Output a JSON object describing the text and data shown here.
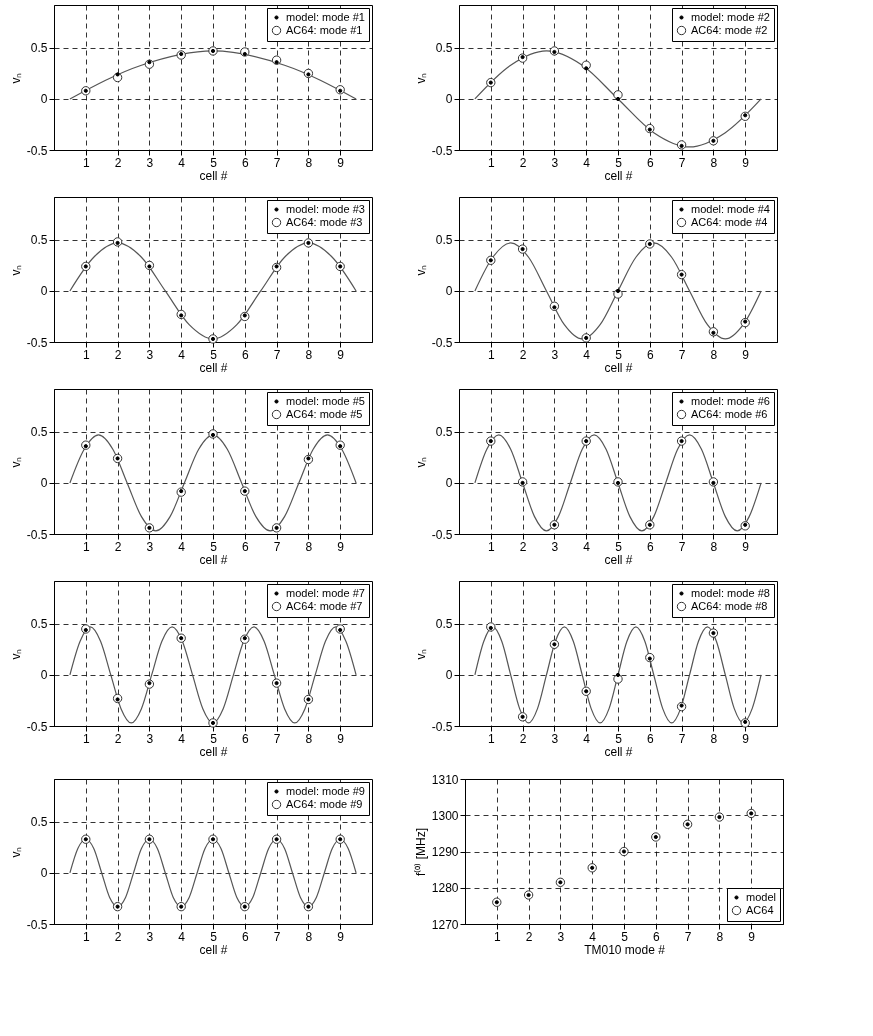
{
  "chart_data": [
    {
      "type": "scatter",
      "xlabel": "cell #",
      "ylabel": "vₙ",
      "x": [
        1,
        2,
        3,
        4,
        5,
        6,
        7,
        8,
        9
      ],
      "xlim": [
        0,
        10
      ],
      "xticks": [
        1,
        2,
        3,
        4,
        5,
        6,
        7,
        8,
        9
      ],
      "ylim": [
        -0.5,
        0.92
      ],
      "yticks": [
        -0.5,
        0,
        0.5
      ],
      "grid": true,
      "legend": "top right",
      "series": [
        {
          "name": "model: mode #1",
          "color": "#000000",
          "marker": "circle",
          "values": [
            0.08,
            0.24,
            0.36,
            0.44,
            0.47,
            0.44,
            0.36,
            0.24,
            0.08
          ]
        },
        {
          "type": "line",
          "color": "#555555",
          "marker": "none",
          "x": [
            0.5,
            2.75,
            5,
            7.25,
            9.5
          ],
          "values": [
            0,
            0.33,
            0.47,
            0.33,
            0
          ]
        },
        {
          "name": "AC64: mode #1",
          "color": "#333333",
          "marker": "circle",
          "values": [
            0.08,
            0.21,
            0.34,
            0.43,
            0.47,
            0.46,
            0.38,
            0.25,
            0.09
          ]
        }
      ]
    },
    {
      "type": "scatter",
      "xlabel": "cell #",
      "ylabel": "vₙ",
      "x": [
        1,
        2,
        3,
        4,
        5,
        6,
        7,
        8,
        9
      ],
      "xlim": [
        0,
        10
      ],
      "xticks": [
        1,
        2,
        3,
        4,
        5,
        6,
        7,
        8,
        9
      ],
      "ylim": [
        -0.5,
        0.92
      ],
      "yticks": [
        -0.5,
        0,
        0.5
      ],
      "grid": true,
      "legend": "top right",
      "series": [
        {
          "name": "model: mode #2",
          "color": "#000000",
          "marker": "circle",
          "values": [
            0.16,
            0.41,
            0.46,
            0.3,
            0,
            -0.3,
            -0.46,
            -0.41,
            -0.16
          ]
        },
        {
          "type": "line",
          "color": "#555555",
          "marker": "none",
          "x": [
            0.5,
            1.625,
            2.75,
            3.875,
            5,
            6.125,
            7.25,
            8.375,
            9.5
          ],
          "values": [
            0,
            0.33,
            0.47,
            0.33,
            0,
            -0.33,
            -0.47,
            -0.33,
            0
          ]
        },
        {
          "name": "AC64: mode #2",
          "color": "#333333",
          "marker": "circle",
          "values": [
            0.16,
            0.4,
            0.47,
            0.33,
            0.04,
            -0.29,
            -0.45,
            -0.41,
            -0.17
          ]
        }
      ]
    },
    {
      "type": "scatter",
      "xlabel": "cell #",
      "ylabel": "vₙ",
      "x": [
        1,
        2,
        3,
        4,
        5,
        6,
        7,
        8,
        9
      ],
      "xlim": [
        0,
        10
      ],
      "xticks": [
        1,
        2,
        3,
        4,
        5,
        6,
        7,
        8,
        9
      ],
      "ylim": [
        -0.5,
        0.92
      ],
      "yticks": [
        -0.5,
        0,
        0.5
      ],
      "grid": true,
      "legend": "top right",
      "series": [
        {
          "name": "model: mode #3",
          "color": "#000000",
          "marker": "circle",
          "values": [
            0.24,
            0.47,
            0.24,
            -0.24,
            -0.47,
            -0.24,
            0.24,
            0.47,
            0.24
          ]
        },
        {
          "type": "line",
          "color": "#555555",
          "marker": "none",
          "x": [
            0.5,
            1.25,
            2,
            2.75,
            3.5,
            4.25,
            5,
            5.75,
            6.5,
            7.25,
            8,
            8.75,
            9.5
          ],
          "values": [
            0,
            0.33,
            0.47,
            0.33,
            0,
            -0.33,
            -0.47,
            -0.33,
            0,
            0.33,
            0.47,
            0.33,
            0
          ]
        },
        {
          "name": "AC64: mode #3",
          "color": "#333333",
          "marker": "circle",
          "values": [
            0.24,
            0.48,
            0.25,
            -0.23,
            -0.47,
            -0.25,
            0.23,
            0.47,
            0.24
          ]
        }
      ]
    },
    {
      "type": "scatter",
      "xlabel": "cell #",
      "ylabel": "vₙ",
      "x": [
        1,
        2,
        3,
        4,
        5,
        6,
        7,
        8,
        9
      ],
      "xlim": [
        0,
        10
      ],
      "xticks": [
        1,
        2,
        3,
        4,
        5,
        6,
        7,
        8,
        9
      ],
      "ylim": [
        -0.5,
        0.92
      ],
      "yticks": [
        -0.5,
        0,
        0.5
      ],
      "grid": true,
      "legend": "top right",
      "series": [
        {
          "name": "model: mode #4",
          "color": "#000000",
          "marker": "circle",
          "values": [
            0.3,
            0.41,
            -0.16,
            -0.46,
            0,
            0.46,
            0.16,
            -0.41,
            -0.3
          ]
        },
        {
          "type": "line",
          "color": "#555555",
          "marker": "none",
          "x": [
            0.5,
            1.0625,
            1.625,
            2.1875,
            2.75,
            3.3125,
            3.875,
            4.4375,
            5,
            5.5625,
            6.125,
            6.6875,
            7.25,
            7.8125,
            8.375,
            8.9375,
            9.5
          ],
          "values": [
            0,
            0.33,
            0.47,
            0.33,
            0,
            -0.33,
            -0.47,
            -0.33,
            0,
            0.33,
            0.47,
            0.33,
            0,
            -0.33,
            -0.47,
            -0.33,
            0
          ]
        },
        {
          "name": "AC64: mode #4",
          "color": "#333333",
          "marker": "circle",
          "values": [
            0.3,
            0.41,
            -0.15,
            -0.46,
            -0.03,
            0.46,
            0.16,
            -0.4,
            -0.31
          ]
        }
      ]
    },
    {
      "type": "scatter",
      "xlabel": "cell #",
      "ylabel": "vₙ",
      "x": [
        1,
        2,
        3,
        4,
        5,
        6,
        7,
        8,
        9
      ],
      "xlim": [
        0,
        10
      ],
      "xticks": [
        1,
        2,
        3,
        4,
        5,
        6,
        7,
        8,
        9
      ],
      "ylim": [
        -0.5,
        0.92
      ],
      "yticks": [
        -0.5,
        0,
        0.5
      ],
      "grid": true,
      "legend": "top right",
      "series": [
        {
          "name": "model: mode #5",
          "color": "#000000",
          "marker": "circle",
          "values": [
            0.36,
            0.24,
            -0.44,
            -0.08,
            0.47,
            -0.08,
            -0.44,
            0.24,
            0.36
          ]
        },
        {
          "type": "line",
          "color": "#555555",
          "marker": "none",
          "x": [
            0.5,
            0.95,
            1.4,
            1.85,
            2.3,
            2.75,
            3.2,
            3.65,
            4.1,
            4.55,
            5,
            5.45,
            5.9,
            6.35,
            6.8,
            7.25,
            7.7,
            8.15,
            8.6,
            9.05,
            9.5
          ],
          "values": [
            0,
            0.33,
            0.47,
            0.33,
            0,
            -0.33,
            -0.47,
            -0.33,
            0,
            0.33,
            0.47,
            0.33,
            0,
            -0.33,
            -0.47,
            -0.33,
            0,
            0.33,
            0.47,
            0.33,
            0
          ]
        },
        {
          "name": "AC64: mode #5",
          "color": "#333333",
          "marker": "circle",
          "values": [
            0.37,
            0.24,
            -0.44,
            -0.09,
            0.48,
            -0.08,
            -0.44,
            0.23,
            0.37
          ]
        }
      ]
    },
    {
      "type": "scatter",
      "xlabel": "cell #",
      "ylabel": "vₙ",
      "x": [
        1,
        2,
        3,
        4,
        5,
        6,
        7,
        8,
        9
      ],
      "xlim": [
        0,
        10
      ],
      "xticks": [
        1,
        2,
        3,
        4,
        5,
        6,
        7,
        8,
        9
      ],
      "ylim": [
        -0.5,
        0.92
      ],
      "yticks": [
        -0.5,
        0,
        0.5
      ],
      "grid": true,
      "legend": "top right",
      "series": [
        {
          "name": "model: mode #6",
          "color": "#000000",
          "marker": "circle",
          "values": [
            0.41,
            0,
            -0.41,
            0.41,
            0,
            -0.41,
            0.41,
            0,
            -0.41
          ]
        },
        {
          "type": "line",
          "color": "#555555",
          "marker": "none",
          "x": [
            0.5,
            0.875,
            1.25,
            1.625,
            2,
            2.375,
            2.75,
            3.125,
            3.5,
            3.875,
            4.25,
            4.625,
            5,
            5.375,
            5.75,
            6.125,
            6.5,
            6.875,
            7.25,
            7.625,
            8,
            8.375,
            8.75,
            9.125,
            9.5
          ],
          "values": [
            0,
            0.33,
            0.47,
            0.33,
            0,
            -0.33,
            -0.47,
            -0.33,
            0,
            0.33,
            0.47,
            0.33,
            0,
            -0.33,
            -0.47,
            -0.33,
            0,
            0.33,
            0.47,
            0.33,
            0,
            -0.33,
            -0.47,
            -0.33,
            0
          ]
        },
        {
          "name": "AC64: mode #6",
          "color": "#333333",
          "marker": "circle",
          "values": [
            0.41,
            0.01,
            -0.41,
            0.41,
            0.01,
            -0.41,
            0.41,
            0.01,
            -0.42
          ]
        }
      ]
    },
    {
      "type": "scatter",
      "xlabel": "cell #",
      "ylabel": "vₙ",
      "x": [
        1,
        2,
        3,
        4,
        5,
        6,
        7,
        8,
        9
      ],
      "xlim": [
        0,
        10
      ],
      "xticks": [
        1,
        2,
        3,
        4,
        5,
        6,
        7,
        8,
        9
      ],
      "ylim": [
        -0.5,
        0.92
      ],
      "yticks": [
        -0.5,
        0,
        0.5
      ],
      "grid": true,
      "legend": "top right",
      "series": [
        {
          "name": "model: mode #7",
          "color": "#000000",
          "marker": "circle",
          "values": [
            0.44,
            -0.24,
            -0.08,
            0.36,
            -0.47,
            0.36,
            -0.08,
            -0.24,
            0.44
          ]
        },
        {
          "type": "line",
          "color": "#555555",
          "marker": "none",
          "x": [
            0.5,
            0.821,
            1.143,
            1.464,
            1.786,
            2.107,
            2.429,
            2.75,
            3.071,
            3.393,
            3.714,
            4.036,
            4.357,
            4.679,
            5,
            5.321,
            5.643,
            5.964,
            6.286,
            6.607,
            6.929,
            7.25,
            7.571,
            7.893,
            8.214,
            8.536,
            8.857,
            9.179,
            9.5
          ],
          "values": [
            0,
            0.33,
            0.47,
            0.33,
            0,
            -0.33,
            -0.47,
            -0.33,
            0,
            0.33,
            0.47,
            0.33,
            0,
            -0.33,
            -0.47,
            -0.33,
            0,
            0.33,
            0.47,
            0.33,
            0,
            -0.33,
            -0.47,
            -0.33,
            0,
            0.33,
            0.47,
            0.33,
            0
          ]
        },
        {
          "name": "AC64: mode #7",
          "color": "#333333",
          "marker": "circle",
          "values": [
            0.45,
            -0.23,
            -0.09,
            0.36,
            -0.47,
            0.35,
            -0.08,
            -0.24,
            0.45
          ]
        }
      ]
    },
    {
      "type": "scatter",
      "xlabel": "cell #",
      "ylabel": "vₙ",
      "x": [
        1,
        2,
        3,
        4,
        5,
        6,
        7,
        8,
        9
      ],
      "xlim": [
        0,
        10
      ],
      "xticks": [
        1,
        2,
        3,
        4,
        5,
        6,
        7,
        8,
        9
      ],
      "ylim": [
        -0.5,
        0.92
      ],
      "yticks": [
        -0.5,
        0,
        0.5
      ],
      "grid": true,
      "legend": "top right",
      "series": [
        {
          "name": "model: mode #8",
          "color": "#000000",
          "marker": "circle",
          "values": [
            0.46,
            -0.41,
            0.3,
            -0.16,
            0,
            0.16,
            -0.3,
            0.41,
            -0.46
          ]
        },
        {
          "type": "line",
          "color": "#555555",
          "marker": "none",
          "x": [
            0.5,
            0.781,
            1.063,
            1.344,
            1.625,
            1.906,
            2.188,
            2.469,
            2.75,
            3.031,
            3.313,
            3.594,
            3.875,
            4.156,
            4.438,
            4.719,
            5,
            5.281,
            5.563,
            5.844,
            6.125,
            6.406,
            6.688,
            6.969,
            7.25,
            7.531,
            7.813,
            8.094,
            8.375,
            8.656,
            8.938,
            9.219,
            9.5
          ],
          "values": [
            0,
            0.33,
            0.47,
            0.33,
            0,
            -0.33,
            -0.47,
            -0.33,
            0,
            0.33,
            0.47,
            0.33,
            0,
            -0.33,
            -0.47,
            -0.33,
            0,
            0.33,
            0.47,
            0.33,
            0,
            -0.33,
            -0.47,
            -0.33,
            0,
            0.33,
            0.47,
            0.33,
            0,
            -0.33,
            -0.47,
            -0.33,
            0
          ]
        },
        {
          "name": "AC64: mode #8",
          "color": "#333333",
          "marker": "circle",
          "values": [
            0.47,
            -0.41,
            0.3,
            -0.16,
            -0.04,
            0.17,
            -0.31,
            0.41,
            -0.47
          ]
        }
      ]
    },
    {
      "type": "scatter",
      "xlabel": "cell #",
      "ylabel": "vₙ",
      "x": [
        1,
        2,
        3,
        4,
        5,
        6,
        7,
        8,
        9
      ],
      "xlim": [
        0,
        10
      ],
      "xticks": [
        1,
        2,
        3,
        4,
        5,
        6,
        7,
        8,
        9
      ],
      "ylim": [
        -0.5,
        0.92
      ],
      "yticks": [
        -0.5,
        0,
        0.5
      ],
      "grid": true,
      "legend": "top right",
      "series": [
        {
          "name": "model: mode #9",
          "color": "#000000",
          "marker": "circle",
          "values": [
            0.33,
            -0.33,
            0.33,
            -0.33,
            0.33,
            -0.33,
            0.33,
            -0.33,
            0.33
          ]
        },
        {
          "type": "line",
          "color": "#555555",
          "marker": "none",
          "x": [
            0.5,
            0.75,
            1,
            1.25,
            1.5,
            1.75,
            2,
            2.25,
            2.5,
            2.75,
            3,
            3.25,
            3.5,
            3.75,
            4,
            4.25,
            4.5,
            4.75,
            5,
            5.25,
            5.5,
            5.75,
            6,
            6.25,
            6.5,
            6.75,
            7,
            7.25,
            7.5,
            7.75,
            8,
            8.25,
            8.5,
            8.75,
            9,
            9.25,
            9.5
          ],
          "values": [
            0,
            0.24,
            0.33,
            0.24,
            0,
            -0.24,
            -0.33,
            -0.24,
            0,
            0.24,
            0.33,
            0.24,
            0,
            -0.24,
            -0.33,
            -0.24,
            0,
            0.24,
            0.33,
            0.24,
            0,
            -0.24,
            -0.33,
            -0.24,
            0,
            0.24,
            0.33,
            0.24,
            0,
            -0.24,
            -0.33,
            -0.24,
            0,
            0.24,
            0.33,
            0.24,
            0
          ]
        },
        {
          "name": "AC64: mode #9",
          "color": "#333333",
          "marker": "circle",
          "values": [
            0.33,
            -0.33,
            0.33,
            -0.33,
            0.33,
            -0.33,
            0.33,
            -0.33,
            0.33
          ]
        }
      ]
    },
    {
      "type": "scatter",
      "xlabel": "TM010 mode #",
      "ylabel": "f⁽⁰⁾ [MHz]",
      "x": [
        1,
        2,
        3,
        4,
        5,
        6,
        7,
        8,
        9
      ],
      "xlim": [
        0,
        10
      ],
      "xticks": [
        1,
        2,
        3,
        4,
        5,
        6,
        7,
        8,
        9
      ],
      "ylim": [
        1270,
        1310
      ],
      "yticks": [
        1270,
        1280,
        1290,
        1300,
        1310
      ],
      "grid": true,
      "legend": "bottom right",
      "series": [
        {
          "name": "model",
          "color": "#000000",
          "marker": "circle",
          "values": [
            1276,
            1278,
            1281.5,
            1285.5,
            1290,
            1294,
            1297.5,
            1299.5,
            1300.5
          ]
        },
        {
          "name": "AC64",
          "color": "#333333",
          "marker": "circle",
          "values": [
            1276,
            1278,
            1281.5,
            1285.5,
            1290,
            1294,
            1297.5,
            1299.5,
            1300.5
          ]
        }
      ]
    }
  ]
}
